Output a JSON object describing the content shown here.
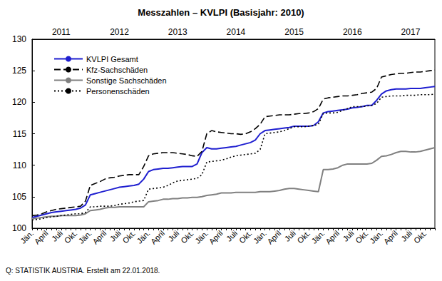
{
  "chart_data": {
    "type": "line",
    "title": "Messzahlen – KVLPI (Basisjahr: 2010)",
    "source": "Q: STATISTIK AUSTRIA. Erstellt am 22.01.2018.",
    "categories": [
      "Jän.",
      null,
      null,
      "April",
      null,
      null,
      "Juli",
      null,
      null,
      "Okt.",
      null,
      null,
      "Jän.",
      null,
      null,
      "April",
      null,
      null,
      "Juli",
      null,
      null,
      "Okt.",
      null,
      null,
      "Jän.",
      null,
      null,
      "April",
      null,
      null,
      "Juli",
      null,
      null,
      "Okt.",
      null,
      null,
      "Jän.",
      null,
      null,
      "April",
      null,
      null,
      "Juli",
      null,
      null,
      "Okt.",
      null,
      null,
      "Jän.",
      null,
      null,
      "April",
      null,
      null,
      "Juli",
      null,
      null,
      "Okt.",
      null,
      null,
      "Jän.",
      null,
      null,
      "April",
      null,
      null,
      "Juli",
      null,
      null,
      "Okt.",
      null,
      null,
      "Jän.",
      null,
      null,
      "April",
      null,
      null,
      "Juli",
      null,
      null,
      "Okt.",
      null,
      null
    ],
    "top_categories": [
      null,
      null,
      null,
      null,
      null,
      null,
      "2011",
      null,
      null,
      null,
      null,
      null,
      null,
      null,
      null,
      null,
      null,
      null,
      "2012",
      null,
      null,
      null,
      null,
      null,
      null,
      null,
      null,
      null,
      null,
      null,
      "2013",
      null,
      null,
      null,
      null,
      null,
      null,
      null,
      null,
      null,
      null,
      null,
      "2014",
      null,
      null,
      null,
      null,
      null,
      null,
      null,
      null,
      null,
      null,
      null,
      "2015",
      null,
      null,
      null,
      null,
      null,
      null,
      null,
      null,
      null,
      null,
      null,
      "2016",
      null,
      null,
      null,
      null,
      null,
      null,
      null,
      null,
      null,
      null,
      null,
      "2017",
      null,
      null,
      null,
      null,
      null
    ],
    "series": [
      {
        "name": "KVLPI Gesamt",
        "color": "#1f1fd0",
        "line_style": "solid",
        "values": [
          101.7,
          101.9,
          102.1,
          102.3,
          102.5,
          102.6,
          102.7,
          102.8,
          102.9,
          103.0,
          103.2,
          103.7,
          105.3,
          105.5,
          105.7,
          105.9,
          106.1,
          106.3,
          106.5,
          106.6,
          106.7,
          106.8,
          107.0,
          107.8,
          109.0,
          109.3,
          109.4,
          109.5,
          109.5,
          109.6,
          109.7,
          109.8,
          109.8,
          109.8,
          110.2,
          112.0,
          112.8,
          112.6,
          112.6,
          112.7,
          112.8,
          112.9,
          113.0,
          113.2,
          113.4,
          113.6,
          114.0,
          115.0,
          115.5,
          115.6,
          115.7,
          115.8,
          115.9,
          116.0,
          116.2,
          116.2,
          116.2,
          116.2,
          116.3,
          116.9,
          118.3,
          118.5,
          118.6,
          118.7,
          118.8,
          118.9,
          119.1,
          119.2,
          119.3,
          119.5,
          119.5,
          120.3,
          121.3,
          121.8,
          122.0,
          122.1,
          122.1,
          122.1,
          122.2,
          122.2,
          122.2,
          122.3,
          122.4,
          122.5
        ]
      },
      {
        "name": "Kfz-Sachschäden",
        "color": "#000000",
        "line_style": "dashed",
        "values": [
          102.0,
          102.1,
          102.3,
          102.6,
          102.8,
          103.0,
          103.1,
          103.2,
          103.3,
          103.4,
          103.5,
          104.3,
          106.8,
          107.1,
          107.4,
          107.8,
          108.0,
          108.1,
          108.3,
          108.4,
          108.5,
          108.5,
          108.5,
          109.8,
          111.5,
          111.8,
          111.9,
          112.0,
          112.0,
          112.0,
          111.9,
          111.8,
          111.7,
          111.5,
          111.4,
          112.2,
          115.0,
          115.5,
          115.3,
          115.2,
          115.1,
          115.0,
          115.0,
          114.9,
          115.0,
          115.3,
          115.8,
          116.5,
          117.7,
          117.8,
          117.9,
          118.0,
          118.0,
          118.0,
          118.1,
          118.2,
          118.2,
          118.3,
          118.5,
          119.0,
          120.5,
          120.7,
          120.8,
          120.9,
          121.0,
          121.0,
          121.1,
          121.2,
          121.4,
          121.5,
          121.6,
          122.2,
          124.0,
          124.2,
          124.4,
          124.5,
          124.6,
          124.6,
          124.7,
          124.8,
          124.8,
          124.9,
          125.0,
          125.1
        ]
      },
      {
        "name": "Sonstige Sachschäden",
        "color": "#808080",
        "line_style": "solid",
        "values": [
          101.5,
          101.6,
          101.7,
          101.8,
          101.9,
          101.9,
          102.0,
          102.0,
          102.0,
          102.0,
          102.1,
          102.3,
          102.8,
          102.9,
          103.0,
          103.2,
          103.3,
          103.3,
          103.4,
          103.4,
          103.4,
          103.4,
          103.4,
          103.4,
          104.2,
          104.3,
          104.4,
          104.6,
          104.6,
          104.7,
          104.7,
          104.8,
          104.8,
          104.9,
          104.9,
          105.0,
          105.2,
          105.3,
          105.4,
          105.6,
          105.6,
          105.6,
          105.7,
          105.7,
          105.7,
          105.7,
          105.7,
          105.8,
          105.8,
          105.8,
          105.9,
          106.0,
          106.2,
          106.3,
          106.3,
          106.2,
          106.1,
          106.0,
          105.9,
          105.8,
          109.3,
          109.3,
          109.4,
          109.6,
          110.0,
          110.2,
          110.2,
          110.2,
          110.2,
          110.2,
          110.3,
          110.8,
          111.4,
          111.5,
          111.7,
          112.0,
          112.2,
          112.2,
          112.1,
          112.1,
          112.2,
          112.4,
          112.6,
          112.8
        ]
      },
      {
        "name": "Personenschäden",
        "color": "#000000",
        "line_style": "dotted",
        "values": [
          101.3,
          101.4,
          101.5,
          101.7,
          101.8,
          101.9,
          102.0,
          102.1,
          102.2,
          102.3,
          102.3,
          102.5,
          103.4,
          103.4,
          103.5,
          103.5,
          103.5,
          103.6,
          103.8,
          103.9,
          104.0,
          104.2,
          104.3,
          104.4,
          106.2,
          106.3,
          106.4,
          106.5,
          106.8,
          107.2,
          107.5,
          107.6,
          107.7,
          107.8,
          107.9,
          108.5,
          110.5,
          110.6,
          110.7,
          110.8,
          111.0,
          111.3,
          111.5,
          111.6,
          111.7,
          111.8,
          111.9,
          112.5,
          115.0,
          115.1,
          115.2,
          115.3,
          115.5,
          115.8,
          116.1,
          116.1,
          116.1,
          116.2,
          116.3,
          116.5,
          118.2,
          118.3,
          118.3,
          118.4,
          118.7,
          119.0,
          119.3,
          119.3,
          119.3,
          119.4,
          119.5,
          119.8,
          120.8,
          120.9,
          121.0,
          121.0,
          121.0,
          121.1,
          121.1,
          121.1,
          121.2,
          121.2,
          121.2,
          121.3
        ]
      }
    ],
    "ylim": [
      100,
      130
    ],
    "yticks": [
      100,
      105,
      110,
      115,
      120,
      125,
      130
    ],
    "grid": false,
    "legend": "upper left"
  }
}
